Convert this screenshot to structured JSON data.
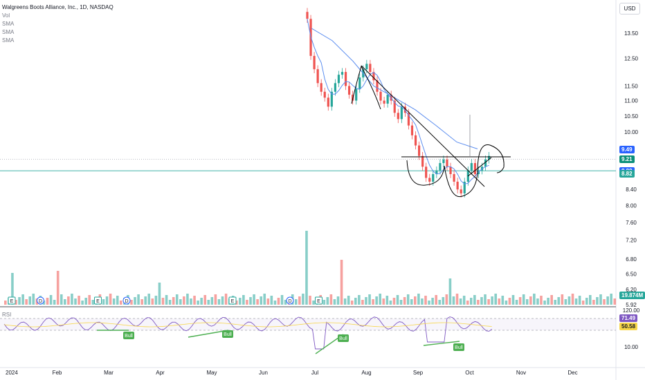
{
  "header": {
    "title": "Walgreens Boots Alliance, Inc., 1D, NASDAQ",
    "indicators": [
      "Vol",
      "SMA",
      "SMA",
      "SMA"
    ]
  },
  "currency_button": "USD",
  "rsi_label": "RSI",
  "price_badges": [
    {
      "label": "9.49",
      "color": "#2962ff",
      "y": 9.49
    },
    {
      "label": "9.21",
      "color": "#0b8f7a",
      "y": 9.21
    },
    {
      "label": "8.89",
      "color": "#2962ff",
      "y": 8.89
    },
    {
      "label": "8.82",
      "color": "#26a69a",
      "y": 8.82
    }
  ],
  "volume_badge": {
    "label": "19.874M",
    "color": "#26a69a"
  },
  "rsi_badges": [
    {
      "label": "71.49",
      "color": "#7e57c2"
    },
    {
      "label": "50.58",
      "color": "#f7d64a"
    }
  ],
  "rsi_scale_labels": [
    "120.00",
    "10.00"
  ],
  "bull_label": "Bull",
  "event_markers": [
    {
      "label": "E",
      "month_index": 0
    },
    {
      "label": "D",
      "month_index": 1
    },
    {
      "label": "E",
      "month_index": 3
    },
    {
      "label": "D",
      "month_index": 4
    },
    {
      "label": "E",
      "month_index": 6
    },
    {
      "label": "D",
      "month_index": 8
    },
    {
      "label": "E",
      "month_index": 9
    }
  ],
  "chart_data": {
    "type": "candlestick",
    "x_axis_labels": [
      "2024",
      "Feb",
      "Mar",
      "Apr",
      "May",
      "Jun",
      "Jul",
      "Aug",
      "Sep",
      "Oct",
      "Nov",
      "Dec"
    ],
    "y_axis_labels": [
      13.5,
      12.5,
      11.5,
      11.0,
      10.5,
      10.0,
      8.4,
      8.0,
      7.6,
      7.2,
      6.8,
      6.5,
      6.2,
      5.92
    ],
    "y_scale": "log",
    "horizontal_lines": [
      9.21,
      8.89
    ],
    "candles_close": [
      14.1,
      12.6,
      12.1,
      11.6,
      11.3,
      11.1,
      10.8,
      11.3,
      11.6,
      11.9,
      12.0,
      11.5,
      11.2,
      11.0,
      11.4,
      11.8,
      12.1,
      12.3,
      12.0,
      11.7,
      11.3,
      11.0,
      10.9,
      11.2,
      11.0,
      10.6,
      10.4,
      10.8,
      10.6,
      10.2,
      9.9,
      9.6,
      9.3,
      9.0,
      8.7,
      8.6,
      8.8,
      8.9,
      9.1,
      9.2,
      9.0,
      8.8,
      8.6,
      8.4,
      8.3,
      8.6,
      8.9,
      9.1,
      8.8,
      8.9,
      9.0,
      9.2,
      9.3
    ],
    "sma_long_points": [
      [
        13.7,
        0
      ],
      [
        13.2,
        1
      ],
      [
        12.4,
        2
      ],
      [
        11.5,
        3
      ],
      [
        11.1,
        4
      ],
      [
        10.7,
        5
      ],
      [
        10.2,
        6
      ],
      [
        9.7,
        7
      ],
      [
        9.5,
        8
      ]
    ],
    "rsi": {
      "latest": 71.49,
      "sma": 50.58
    }
  }
}
